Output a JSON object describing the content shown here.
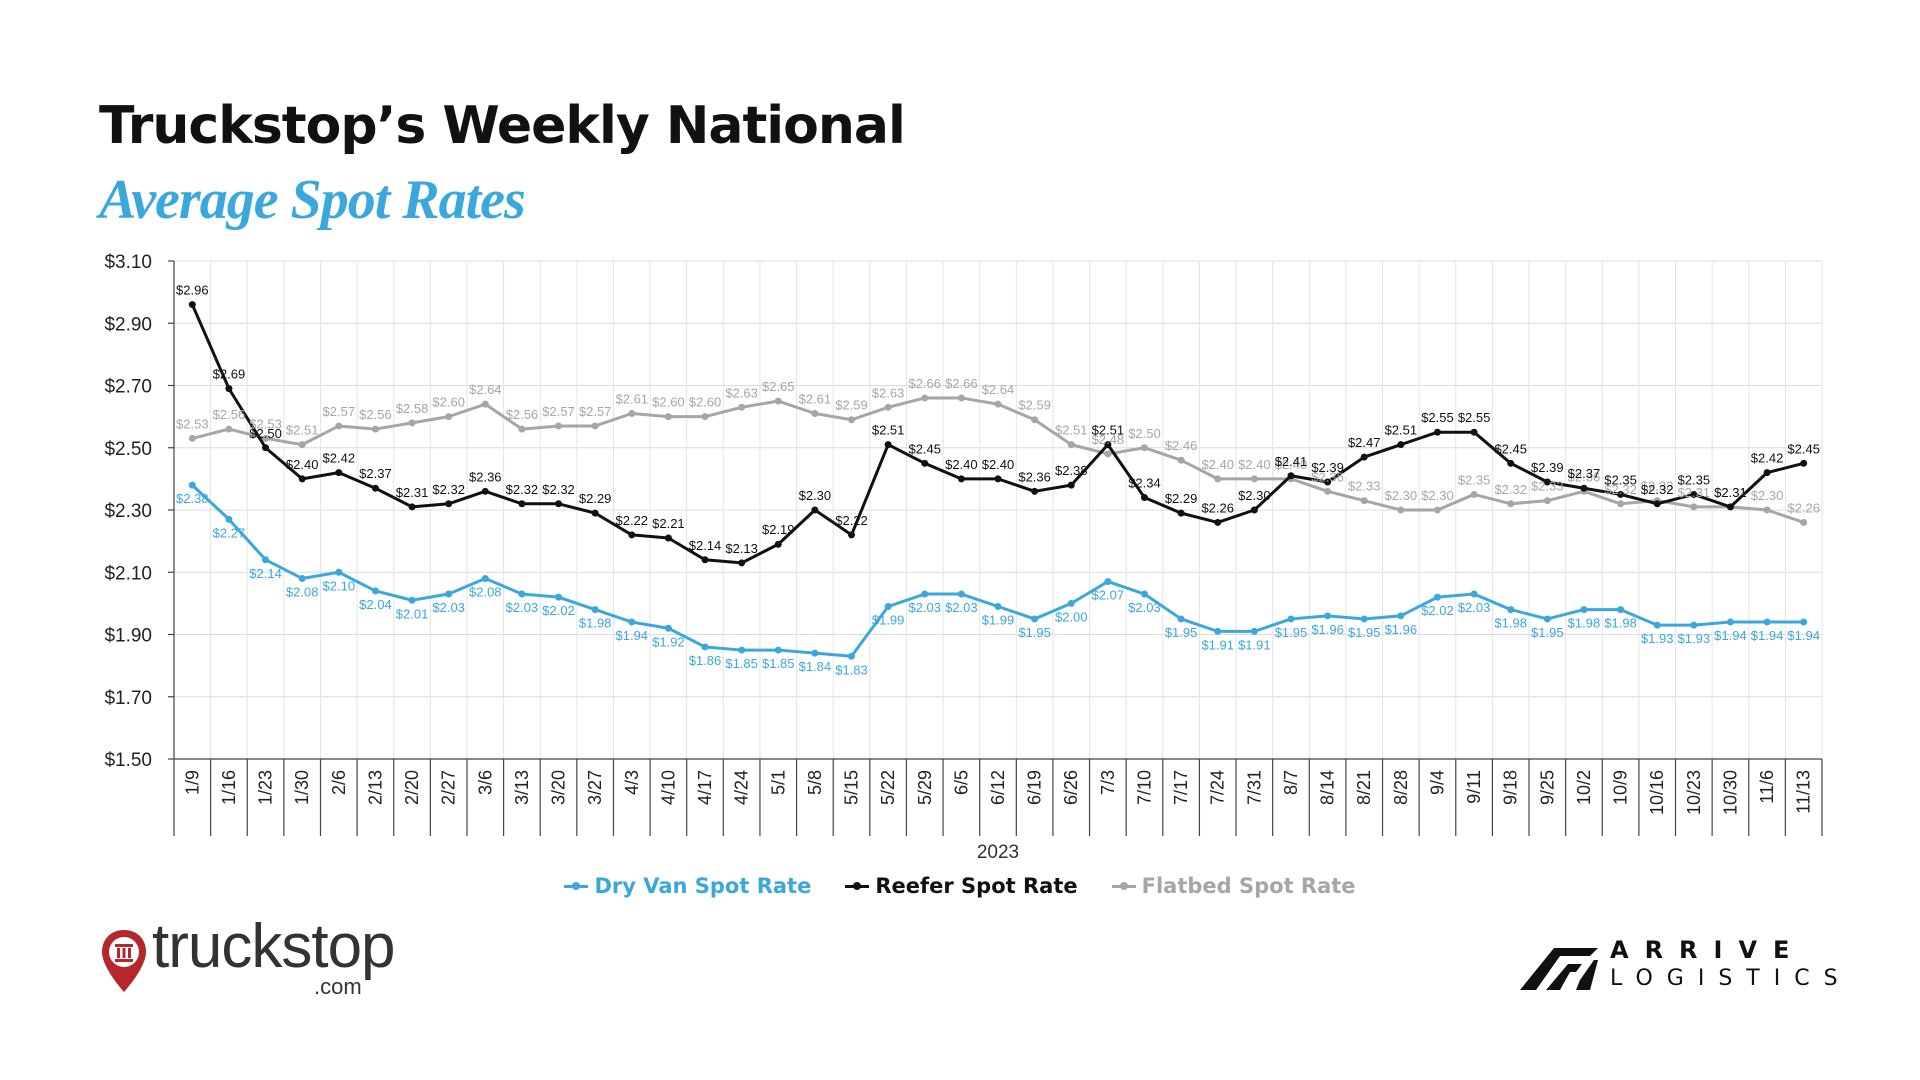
{
  "title": "Truckstop’s Weekly National",
  "subtitle": "Average Spot Rates",
  "colors": {
    "dry_van": "#3aa8dc",
    "reefer": "#111111",
    "flatbed": "#a6a6a6",
    "subtitle": "#3aa8dc",
    "brand_red": "#b5272d"
  },
  "logos": {
    "truckstop_name": "truckstop",
    "truckstop_suffix": ".com",
    "arrive_line1": "ARRIVE",
    "arrive_line2": "LOGISTICS"
  },
  "chart_data": {
    "type": "line",
    "xlabel": "2023",
    "ylabel": "",
    "ylim": [
      1.5,
      3.1
    ],
    "yticks": [
      "$1.50",
      "$1.70",
      "$1.90",
      "$2.10",
      "$2.30",
      "$2.50",
      "$2.70",
      "$2.90",
      "$3.10"
    ],
    "grid": true,
    "legend_position": "bottom",
    "categories": [
      "1/9",
      "1/16",
      "1/23",
      "1/30",
      "2/6",
      "2/13",
      "2/20",
      "2/27",
      "3/6",
      "3/13",
      "3/20",
      "3/27",
      "4/3",
      "4/10",
      "4/17",
      "4/24",
      "5/1",
      "5/8",
      "5/15",
      "5/22",
      "5/29",
      "6/5",
      "6/12",
      "6/19",
      "6/26",
      "7/3",
      "7/10",
      "7/17",
      "7/24",
      "7/31",
      "8/7",
      "8/14",
      "8/21",
      "8/28",
      "9/4",
      "9/11",
      "9/18",
      "9/25",
      "10/2",
      "10/9",
      "10/16",
      "10/23",
      "10/30",
      "11/6",
      "11/13"
    ],
    "series": [
      {
        "name": "Dry Van Spot Rate",
        "color": "#3aa8dc",
        "values": [
          2.38,
          2.27,
          2.14,
          2.08,
          2.1,
          2.04,
          2.01,
          2.03,
          2.08,
          2.03,
          2.02,
          1.98,
          1.94,
          1.92,
          1.86,
          1.85,
          1.85,
          1.84,
          1.83,
          1.99,
          2.03,
          2.03,
          1.99,
          1.95,
          2.0,
          2.07,
          2.03,
          1.95,
          1.91,
          1.91,
          1.95,
          1.96,
          1.95,
          1.96,
          2.02,
          2.03,
          1.98,
          1.95,
          1.98,
          1.98,
          1.93,
          1.93,
          1.94,
          1.94,
          1.94
        ],
        "labels": [
          "$2.38",
          "$2.27",
          "$2.14",
          "$2.08",
          "$2.10",
          "$2.04",
          "$2.01",
          "$2.03",
          "$2.08",
          "$2.03",
          "$2.02",
          "$1.98",
          "$1.94",
          "$1.92",
          "$1.86",
          "$1.85",
          "$1.85",
          "$1.84",
          "$1.83",
          "$1.99",
          "$2.03",
          "$2.03",
          "$1.99",
          "$1.95",
          "$2.00",
          "$2.07",
          "$2.03",
          "$1.95",
          "$1.91",
          "$1.91",
          "$1.95",
          "$1.96",
          "$1.95",
          "$1.96",
          "$2.02",
          "$2.03",
          "$1.98",
          "$1.95",
          "$1.98",
          "$1.98",
          "$1.93",
          "$1.93",
          "$1.94",
          "$1.94",
          "$1.94"
        ]
      },
      {
        "name": "Reefer Spot Rate",
        "color": "#111111",
        "values": [
          2.96,
          2.69,
          2.5,
          2.4,
          2.42,
          2.37,
          2.31,
          2.32,
          2.36,
          2.32,
          2.32,
          2.29,
          2.22,
          2.21,
          2.14,
          2.13,
          2.19,
          2.3,
          2.22,
          2.51,
          2.45,
          2.4,
          2.4,
          2.36,
          2.38,
          2.51,
          2.34,
          2.29,
          2.26,
          2.3,
          2.41,
          2.39,
          2.47,
          2.51,
          2.55,
          2.55,
          2.45,
          2.39,
          2.37,
          2.35,
          2.32,
          2.35,
          2.31,
          2.42,
          2.45
        ],
        "labels": [
          "$2.96",
          "$2.69",
          "$2.50",
          "$2.40",
          "$2.42",
          "$2.37",
          "$2.31",
          "$2.32",
          "$2.36",
          "$2.32",
          "$2.32",
          "$2.29",
          "$2.22",
          "$2.21",
          "$2.14",
          "$2.13",
          "$2.19",
          "$2.30",
          "$2.22",
          "$2.51",
          "$2.45",
          "$2.40",
          "$2.40",
          "$2.36",
          "$2.38",
          "$2.51",
          "$2.34",
          "$2.29",
          "$2.26",
          "$2.30",
          "$2.41",
          "$2.39",
          "$2.47",
          "$2.51",
          "$2.55",
          "$2.55",
          "$2.45",
          "$2.39",
          "$2.37",
          "$2.35",
          "$2.32",
          "$2.35",
          "$2.31",
          "$2.42",
          "$2.45"
        ]
      },
      {
        "name": "Flatbed Spot Rate",
        "color": "#a6a6a6",
        "values": [
          2.53,
          2.56,
          2.53,
          2.51,
          2.57,
          2.56,
          2.58,
          2.6,
          2.64,
          2.56,
          2.57,
          2.57,
          2.61,
          2.6,
          2.6,
          2.63,
          2.65,
          2.61,
          2.59,
          2.63,
          2.66,
          2.66,
          2.64,
          2.59,
          2.51,
          2.48,
          2.5,
          2.46,
          2.4,
          2.4,
          2.4,
          2.36,
          2.33,
          2.3,
          2.3,
          2.35,
          2.32,
          2.33,
          2.36,
          2.32,
          2.33,
          2.31,
          2.31,
          2.3,
          2.26
        ],
        "labels": [
          "$2.53",
          "$2.56",
          "$2.53",
          "$2.51",
          "$2.57",
          "$2.56",
          "$2.58",
          "$2.60",
          "$2.64",
          "$2.56",
          "$2.57",
          "$2.57",
          "$2.61",
          "$2.60",
          "$2.60",
          "$2.63",
          "$2.65",
          "$2.61",
          "$2.59",
          "$2.63",
          "$2.66",
          "$2.66",
          "$2.64",
          "$2.59",
          "$2.51",
          "$2.48",
          "$2.50",
          "$2.46",
          "$2.40",
          "$2.40",
          "$2.40",
          "$2.36",
          "$2.33",
          "$2.30",
          "$2.30",
          "$2.35",
          "$2.32",
          "$2.33",
          "$2.36",
          "$2.32",
          "$2.33",
          "$2.31",
          "$2.31",
          "$2.30",
          "$2.26"
        ]
      }
    ]
  }
}
